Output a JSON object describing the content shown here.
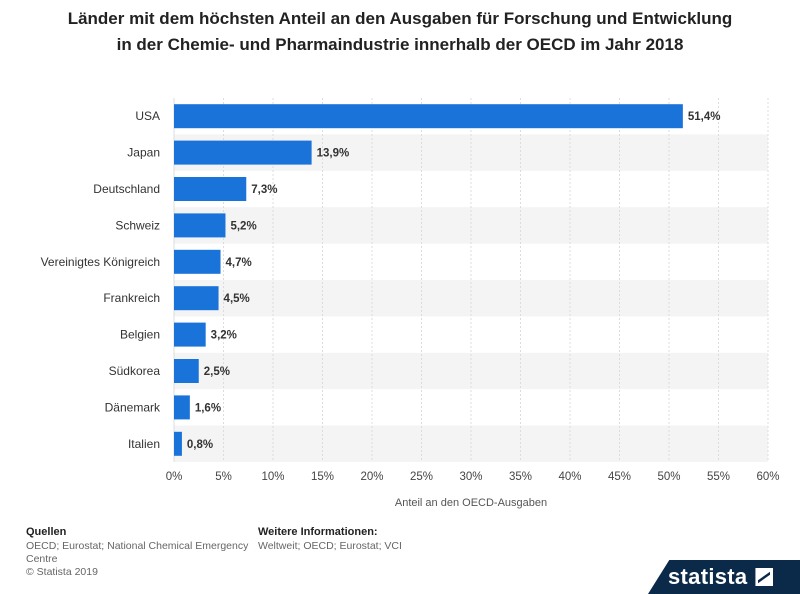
{
  "chart_data": {
    "type": "bar",
    "orientation": "horizontal",
    "title": "Länder mit dem höchsten Anteil an den Ausgaben für Forschung und Entwicklung in der Chemie- und Pharmaindustrie innerhalb der OECD im Jahr 2018",
    "categories": [
      "USA",
      "Japan",
      "Deutschland",
      "Schweiz",
      "Vereinigtes Königreich",
      "Frankreich",
      "Belgien",
      "Südkorea",
      "Dänemark",
      "Italien"
    ],
    "values": [
      51.4,
      13.9,
      7.3,
      5.2,
      4.7,
      4.5,
      3.2,
      2.5,
      1.6,
      0.8
    ],
    "value_labels": [
      "51,4%",
      "13,9%",
      "7,3%",
      "5,2%",
      "4,7%",
      "4,5%",
      "3,2%",
      "2,5%",
      "1,6%",
      "0,8%"
    ],
    "xlim": [
      0,
      60
    ],
    "x_ticks": [
      "0%",
      "5%",
      "10%",
      "15%",
      "20%",
      "25%",
      "30%",
      "35%",
      "40%",
      "45%",
      "50%",
      "55%",
      "60%"
    ],
    "xlabel": "Anteil an den OECD-Ausgaben",
    "ylabel": "",
    "grid": true,
    "bar_color": "#1a73d9"
  },
  "footer": {
    "sources_heading": "Quellen",
    "sources_line1": "OECD; Eurostat; National Chemical Emergency",
    "sources_line2": "Centre",
    "copyright": "© Statista 2019",
    "info_heading": "Weitere Informationen:",
    "info_text": "Weltweit; OECD; Eurostat; VCI"
  },
  "logo": {
    "text": "statista"
  }
}
